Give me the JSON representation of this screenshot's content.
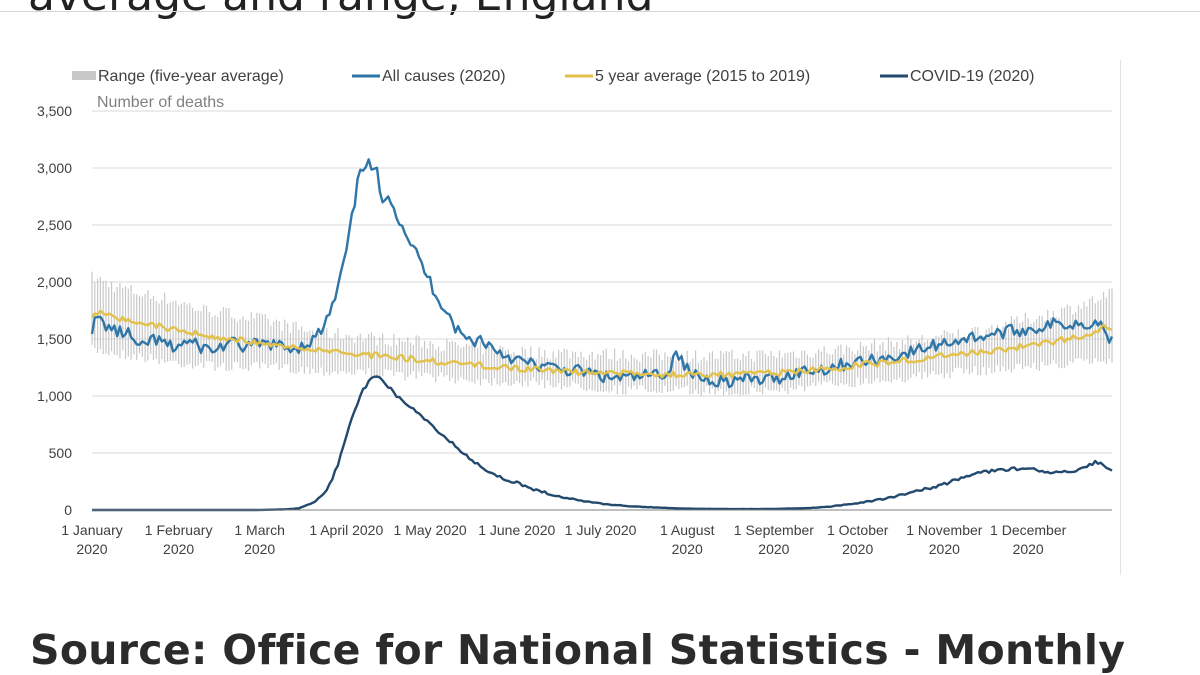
{
  "page": {
    "heading_fragment": "average and range, England",
    "source_text": "Source: Office for National Statistics - Monthly"
  },
  "chart_data": {
    "type": "line",
    "ylabel": "Number of deaths",
    "ylim": [
      0,
      3500
    ],
    "yticks": [
      0,
      500,
      1000,
      1500,
      2000,
      2500,
      3000,
      3500
    ],
    "ytick_labels": [
      "0",
      "500",
      "1,000",
      "1,500",
      "2,000",
      "2,500",
      "3,000",
      "3,500"
    ],
    "x_unit": "day of year 2020",
    "xlim": [
      1,
      366
    ],
    "xticks": [
      {
        "day": 1,
        "line1": "1 January",
        "line2": "2020"
      },
      {
        "day": 32,
        "line1": "1 February",
        "line2": "2020"
      },
      {
        "day": 61,
        "line1": "1 March",
        "line2": "2020"
      },
      {
        "day": 92,
        "line1": "1 April 2020",
        "line2": ""
      },
      {
        "day": 122,
        "line1": "1 May 2020",
        "line2": ""
      },
      {
        "day": 153,
        "line1": "1 June 2020",
        "line2": ""
      },
      {
        "day": 183,
        "line1": "1 July 2020",
        "line2": ""
      },
      {
        "day": 214,
        "line1": "1 August",
        "line2": "2020"
      },
      {
        "day": 245,
        "line1": "1 September",
        "line2": "2020"
      },
      {
        "day": 275,
        "line1": "1 October",
        "line2": "2020"
      },
      {
        "day": 306,
        "line1": "1 November",
        "line2": "2020"
      },
      {
        "day": 336,
        "line1": "1 December",
        "line2": "2020"
      }
    ],
    "legend": [
      {
        "key": "range",
        "label": "Range (five-year average)"
      },
      {
        "key": "all_causes",
        "label": "All causes (2020)"
      },
      {
        "key": "avg5",
        "label": "5 year average (2015 to 2019)"
      },
      {
        "key": "covid",
        "label": "COVID-19 (2020)"
      }
    ],
    "colors": {
      "range": "#c8c8c8",
      "all_causes": "#2e75a8",
      "avg5": "#e3c14a",
      "covid": "#234a6e"
    },
    "series": [
      {
        "key": "all_causes",
        "name": "All causes (2020)",
        "points": [
          [
            1,
            1600
          ],
          [
            3,
            1680
          ],
          [
            6,
            1620
          ],
          [
            10,
            1560
          ],
          [
            14,
            1550
          ],
          [
            18,
            1400
          ],
          [
            22,
            1500
          ],
          [
            26,
            1470
          ],
          [
            30,
            1420
          ],
          [
            35,
            1480
          ],
          [
            40,
            1430
          ],
          [
            45,
            1400
          ],
          [
            50,
            1470
          ],
          [
            55,
            1430
          ],
          [
            60,
            1450
          ],
          [
            65,
            1460
          ],
          [
            70,
            1420
          ],
          [
            75,
            1430
          ],
          [
            80,
            1490
          ],
          [
            84,
            1600
          ],
          [
            88,
            1850
          ],
          [
            91,
            2150
          ],
          [
            93,
            2400
          ],
          [
            95,
            2700
          ],
          [
            97,
            3000
          ],
          [
            99,
            3050
          ],
          [
            101,
            3000
          ],
          [
            103,
            2950
          ],
          [
            105,
            2650
          ],
          [
            107,
            2800
          ],
          [
            110,
            2600
          ],
          [
            113,
            2450
          ],
          [
            116,
            2300
          ],
          [
            119,
            2150
          ],
          [
            122,
            2000
          ],
          [
            125,
            1850
          ],
          [
            128,
            1750
          ],
          [
            131,
            1600
          ],
          [
            134,
            1520
          ],
          [
            137,
            1480
          ],
          [
            140,
            1500
          ],
          [
            143,
            1450
          ],
          [
            146,
            1400
          ],
          [
            150,
            1350
          ],
          [
            155,
            1300
          ],
          [
            160,
            1270
          ],
          [
            165,
            1250
          ],
          [
            170,
            1230
          ],
          [
            175,
            1220
          ],
          [
            180,
            1200
          ],
          [
            185,
            1160
          ],
          [
            190,
            1160
          ],
          [
            195,
            1160
          ],
          [
            200,
            1180
          ],
          [
            205,
            1200
          ],
          [
            208,
            1230
          ],
          [
            210,
            1430
          ],
          [
            212,
            1300
          ],
          [
            215,
            1200
          ],
          [
            220,
            1150
          ],
          [
            225,
            1140
          ],
          [
            230,
            1130
          ],
          [
            235,
            1150
          ],
          [
            240,
            1140
          ],
          [
            245,
            1150
          ],
          [
            250,
            1180
          ],
          [
            255,
            1220
          ],
          [
            260,
            1230
          ],
          [
            265,
            1250
          ],
          [
            270,
            1280
          ],
          [
            275,
            1300
          ],
          [
            280,
            1310
          ],
          [
            285,
            1330
          ],
          [
            290,
            1360
          ],
          [
            295,
            1390
          ],
          [
            300,
            1430
          ],
          [
            305,
            1460
          ],
          [
            310,
            1490
          ],
          [
            315,
            1510
          ],
          [
            320,
            1530
          ],
          [
            325,
            1550
          ],
          [
            330,
            1570
          ],
          [
            335,
            1580
          ],
          [
            340,
            1600
          ],
          [
            345,
            1630
          ],
          [
            350,
            1630
          ],
          [
            355,
            1640
          ],
          [
            360,
            1650
          ],
          [
            363,
            1610
          ],
          [
            366,
            1470
          ]
        ]
      },
      {
        "key": "avg5",
        "name": "5 year average (2015 to 2019)",
        "points": [
          [
            1,
            1720
          ],
          [
            5,
            1730
          ],
          [
            10,
            1690
          ],
          [
            15,
            1660
          ],
          [
            20,
            1640
          ],
          [
            25,
            1610
          ],
          [
            30,
            1580
          ],
          [
            35,
            1560
          ],
          [
            40,
            1540
          ],
          [
            45,
            1520
          ],
          [
            50,
            1510
          ],
          [
            55,
            1490
          ],
          [
            60,
            1470
          ],
          [
            65,
            1460
          ],
          [
            70,
            1440
          ],
          [
            75,
            1420
          ],
          [
            80,
            1400
          ],
          [
            85,
            1390
          ],
          [
            90,
            1380
          ],
          [
            95,
            1370
          ],
          [
            100,
            1360
          ],
          [
            105,
            1350
          ],
          [
            110,
            1340
          ],
          [
            115,
            1330
          ],
          [
            120,
            1310
          ],
          [
            125,
            1300
          ],
          [
            130,
            1290
          ],
          [
            135,
            1280
          ],
          [
            140,
            1270
          ],
          [
            145,
            1260
          ],
          [
            150,
            1250
          ],
          [
            155,
            1240
          ],
          [
            160,
            1230
          ],
          [
            165,
            1220
          ],
          [
            170,
            1215
          ],
          [
            175,
            1210
          ],
          [
            180,
            1205
          ],
          [
            185,
            1200
          ],
          [
            190,
            1200
          ],
          [
            195,
            1195
          ],
          [
            200,
            1195
          ],
          [
            205,
            1190
          ],
          [
            210,
            1190
          ],
          [
            215,
            1190
          ],
          [
            220,
            1190
          ],
          [
            225,
            1195
          ],
          [
            230,
            1190
          ],
          [
            235,
            1190
          ],
          [
            240,
            1200
          ],
          [
            245,
            1200
          ],
          [
            250,
            1210
          ],
          [
            255,
            1220
          ],
          [
            260,
            1230
          ],
          [
            265,
            1240
          ],
          [
            270,
            1250
          ],
          [
            275,
            1270
          ],
          [
            280,
            1280
          ],
          [
            285,
            1290
          ],
          [
            290,
            1310
          ],
          [
            295,
            1320
          ],
          [
            300,
            1340
          ],
          [
            305,
            1350
          ],
          [
            310,
            1370
          ],
          [
            315,
            1380
          ],
          [
            320,
            1390
          ],
          [
            325,
            1400
          ],
          [
            330,
            1420
          ],
          [
            335,
            1440
          ],
          [
            340,
            1460
          ],
          [
            345,
            1480
          ],
          [
            350,
            1500
          ],
          [
            355,
            1530
          ],
          [
            360,
            1560
          ],
          [
            363,
            1600
          ],
          [
            366,
            1610
          ]
        ]
      },
      {
        "key": "covid",
        "name": "COVID-19 (2020)",
        "points": [
          [
            1,
            0
          ],
          [
            60,
            0
          ],
          [
            70,
            5
          ],
          [
            75,
            15
          ],
          [
            80,
            60
          ],
          [
            83,
            120
          ],
          [
            86,
            220
          ],
          [
            89,
            400
          ],
          [
            92,
            650
          ],
          [
            95,
            880
          ],
          [
            98,
            1050
          ],
          [
            100,
            1120
          ],
          [
            102,
            1180
          ],
          [
            104,
            1150
          ],
          [
            106,
            1100
          ],
          [
            108,
            1060
          ],
          [
            110,
            1000
          ],
          [
            113,
            940
          ],
          [
            116,
            880
          ],
          [
            119,
            820
          ],
          [
            122,
            750
          ],
          [
            125,
            690
          ],
          [
            128,
            630
          ],
          [
            131,
            560
          ],
          [
            134,
            490
          ],
          [
            137,
            440
          ],
          [
            140,
            390
          ],
          [
            143,
            340
          ],
          [
            146,
            300
          ],
          [
            150,
            260
          ],
          [
            155,
            220
          ],
          [
            160,
            175
          ],
          [
            165,
            140
          ],
          [
            170,
            110
          ],
          [
            175,
            85
          ],
          [
            180,
            65
          ],
          [
            185,
            50
          ],
          [
            190,
            40
          ],
          [
            195,
            30
          ],
          [
            200,
            25
          ],
          [
            205,
            20
          ],
          [
            210,
            15
          ],
          [
            215,
            12
          ],
          [
            220,
            10
          ],
          [
            225,
            9
          ],
          [
            230,
            8
          ],
          [
            235,
            8
          ],
          [
            240,
            8
          ],
          [
            245,
            10
          ],
          [
            250,
            12
          ],
          [
            255,
            15
          ],
          [
            260,
            20
          ],
          [
            265,
            30
          ],
          [
            270,
            45
          ],
          [
            275,
            60
          ],
          [
            280,
            80
          ],
          [
            285,
            100
          ],
          [
            290,
            130
          ],
          [
            295,
            160
          ],
          [
            300,
            190
          ],
          [
            305,
            220
          ],
          [
            310,
            260
          ],
          [
            315,
            300
          ],
          [
            320,
            330
          ],
          [
            325,
            350
          ],
          [
            330,
            360
          ],
          [
            335,
            370
          ],
          [
            340,
            350
          ],
          [
            345,
            330
          ],
          [
            350,
            340
          ],
          [
            355,
            360
          ],
          [
            360,
            420
          ],
          [
            363,
            400
          ],
          [
            366,
            340
          ]
        ]
      }
    ],
    "range_band": [
      [
        1,
        1450,
        1980
      ],
      [
        10,
        1420,
        1900
      ],
      [
        20,
        1380,
        1830
      ],
      [
        30,
        1340,
        1780
      ],
      [
        40,
        1320,
        1700
      ],
      [
        50,
        1300,
        1660
      ],
      [
        60,
        1300,
        1620
      ],
      [
        70,
        1290,
        1560
      ],
      [
        80,
        1270,
        1500
      ],
      [
        90,
        1260,
        1480
      ],
      [
        100,
        1250,
        1450
      ],
      [
        110,
        1230,
        1430
      ],
      [
        120,
        1220,
        1410
      ],
      [
        130,
        1200,
        1380
      ],
      [
        140,
        1180,
        1360
      ],
      [
        150,
        1170,
        1340
      ],
      [
        160,
        1160,
        1320
      ],
      [
        170,
        1140,
        1320
      ],
      [
        180,
        1120,
        1310
      ],
      [
        190,
        1100,
        1300
      ],
      [
        200,
        1100,
        1290
      ],
      [
        210,
        1090,
        1300
      ],
      [
        220,
        1090,
        1290
      ],
      [
        230,
        1080,
        1290
      ],
      [
        240,
        1090,
        1300
      ],
      [
        250,
        1100,
        1310
      ],
      [
        260,
        1130,
        1330
      ],
      [
        270,
        1160,
        1350
      ],
      [
        280,
        1180,
        1380
      ],
      [
        290,
        1200,
        1410
      ],
      [
        300,
        1220,
        1440
      ],
      [
        310,
        1250,
        1480
      ],
      [
        320,
        1270,
        1520
      ],
      [
        330,
        1290,
        1580
      ],
      [
        340,
        1310,
        1640
      ],
      [
        350,
        1330,
        1700
      ],
      [
        360,
        1350,
        1780
      ],
      [
        366,
        1360,
        1830
      ]
    ]
  }
}
